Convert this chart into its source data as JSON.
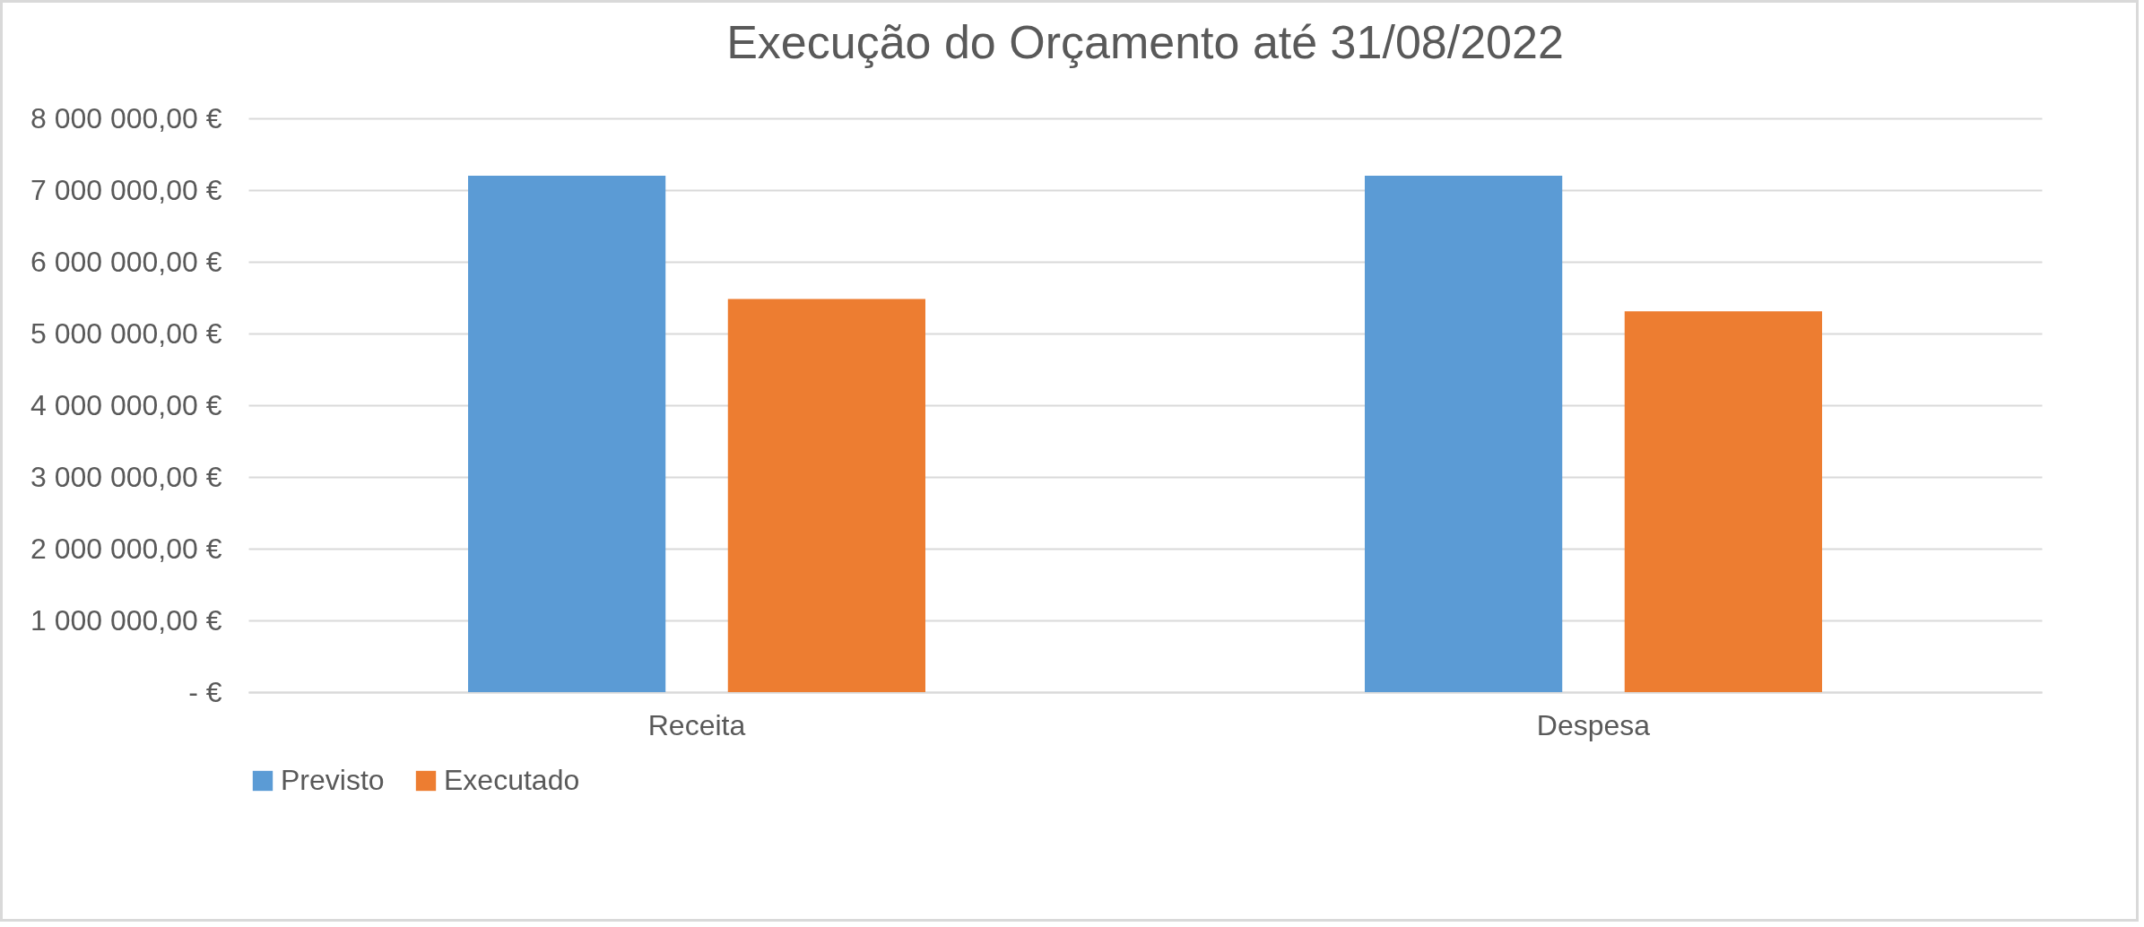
{
  "chart_data": {
    "type": "bar",
    "title": "Execução do Orçamento até 31/08/2022",
    "categories": [
      "Receita",
      "Despesa"
    ],
    "series": [
      {
        "name": "Previsto",
        "color": "#5b9bd5",
        "values": [
          7200000,
          7200000
        ]
      },
      {
        "name": "Executado",
        "color": "#ed7d31",
        "values": [
          5480000,
          5310000
        ]
      }
    ],
    "ylim": [
      0,
      8000000
    ],
    "yticks": [
      {
        "value": 0,
        "label": "-   €"
      },
      {
        "value": 1000000,
        "label": "1 000 000,00 €"
      },
      {
        "value": 2000000,
        "label": "2 000 000,00 €"
      },
      {
        "value": 3000000,
        "label": "3 000 000,00 €"
      },
      {
        "value": 4000000,
        "label": "4 000 000,00 €"
      },
      {
        "value": 5000000,
        "label": "5 000 000,00 €"
      },
      {
        "value": 6000000,
        "label": "6 000 000,00 €"
      },
      {
        "value": 7000000,
        "label": "7 000 000,00 €"
      },
      {
        "value": 8000000,
        "label": "8 000 000,00 €"
      }
    ],
    "grid": "y",
    "legend": "bottom"
  }
}
